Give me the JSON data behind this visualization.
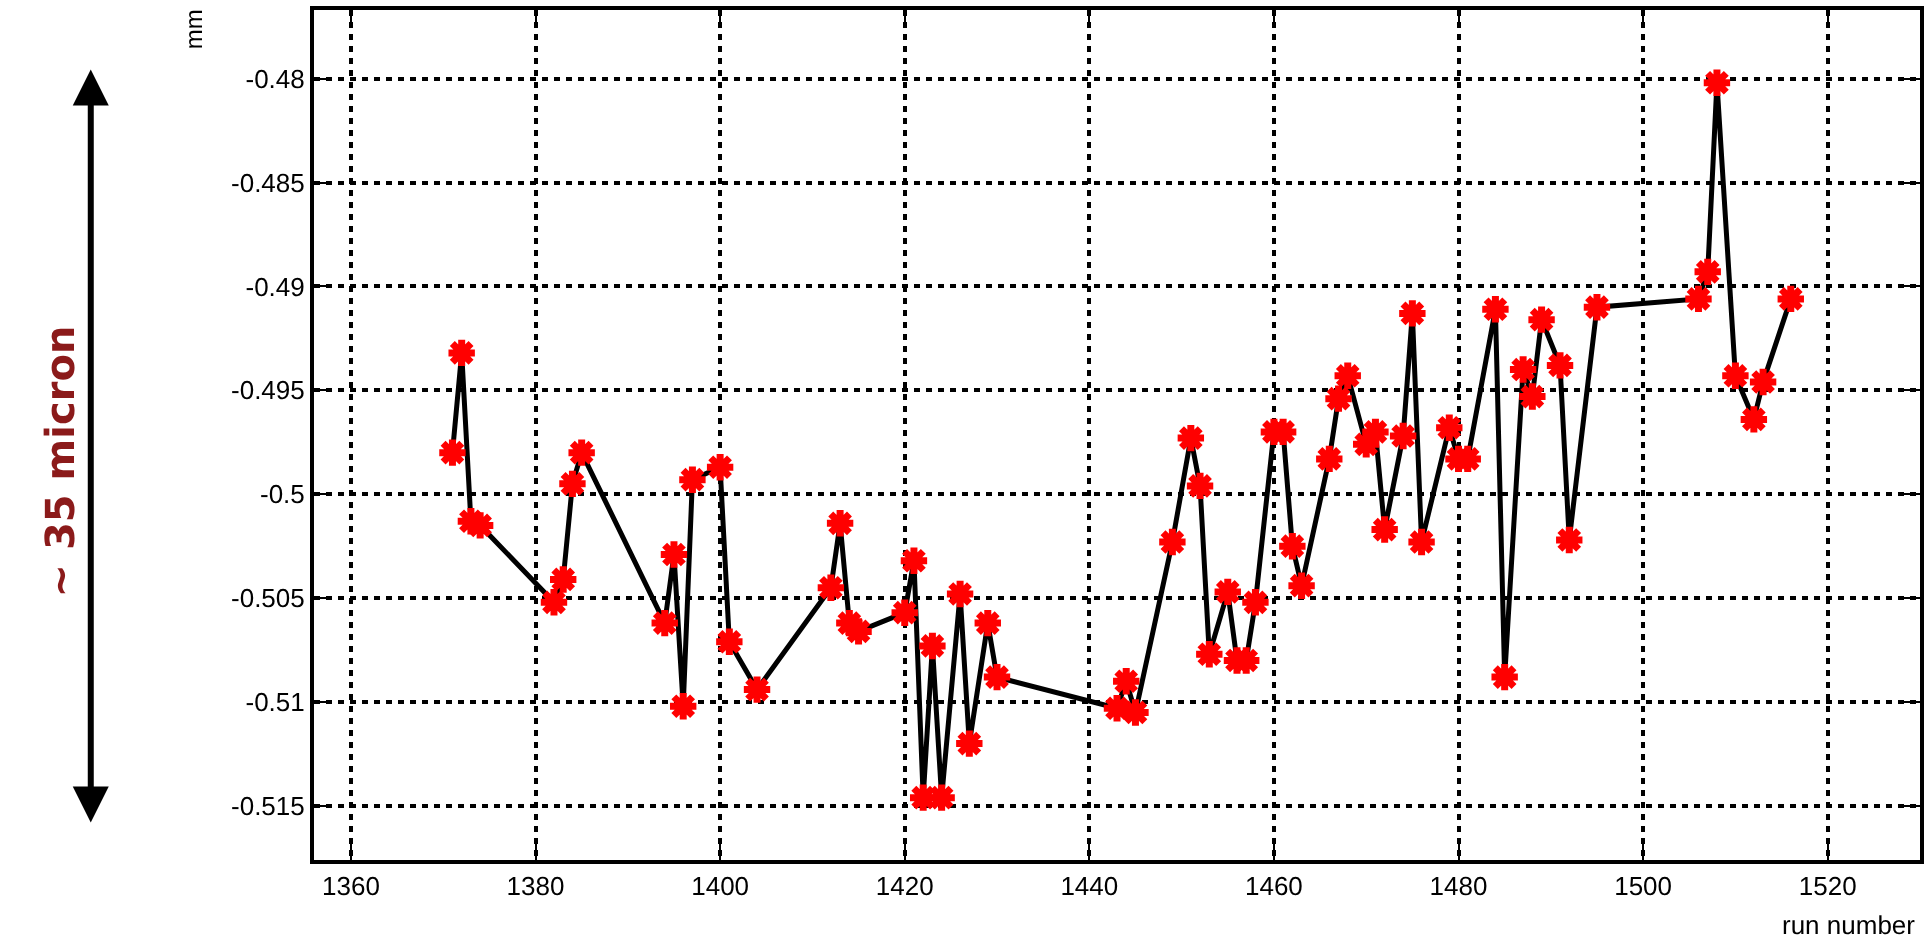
{
  "chart_data": {
    "type": "line",
    "xlabel": "run number",
    "ylabel": "mm",
    "annotations": [
      "~ 35 micron"
    ],
    "x": [
      1371,
      1372,
      1373,
      1374,
      1382,
      1383,
      1384,
      1385,
      1394,
      1395,
      1396,
      1397,
      1400,
      1401,
      1404,
      1412,
      1413,
      1414,
      1415,
      1420,
      1421,
      1422,
      1423,
      1424,
      1426,
      1427,
      1429,
      1430,
      1443,
      1444,
      1445,
      1449,
      1451,
      1452,
      1453,
      1455,
      1456,
      1457,
      1458,
      1460,
      1461,
      1462,
      1463,
      1466,
      1467,
      1468,
      1470,
      1471,
      1472,
      1474,
      1475,
      1476,
      1479,
      1480,
      1481,
      1484,
      1485,
      1487,
      1488,
      1489,
      1491,
      1492,
      1495,
      1506,
      1507,
      1508,
      1510,
      1512,
      1513,
      1516
    ],
    "series": [
      {
        "color": "#ff0000",
        "values": [
          -0.498,
          -0.4932,
          -0.5013,
          -0.5015,
          -0.5052,
          -0.5041,
          -0.4995,
          -0.498,
          -0.5062,
          -0.5029,
          -0.5102,
          -0.4993,
          -0.4987,
          -0.5071,
          -0.5094,
          -0.5045,
          -0.5014,
          -0.5062,
          -0.5066,
          -0.5057,
          -0.5032,
          -0.5146,
          -0.5073,
          -0.5146,
          -0.5048,
          -0.512,
          -0.5062,
          -0.5088,
          -0.5103,
          -0.509,
          -0.5105,
          -0.5023,
          -0.4973,
          -0.4996,
          -0.5077,
          -0.5047,
          -0.508,
          -0.508,
          -0.5052,
          -0.497,
          -0.497,
          -0.5025,
          -0.5044,
          -0.4983,
          -0.4954,
          -0.4943,
          -0.4976,
          -0.497,
          -0.5017,
          -0.4972,
          -0.4913,
          -0.5023,
          -0.4968,
          -0.4983,
          -0.4983,
          -0.4911,
          -0.5088,
          -0.494,
          -0.4953,
          -0.4916,
          -0.4938,
          -0.5022,
          -0.491,
          -0.4906,
          -0.4893,
          -0.4802,
          -0.4943,
          -0.4964,
          -0.4946,
          -0.4906
        ]
      }
    ],
    "xlim": [
      1356,
      1530
    ],
    "ylim": [
      -0.5176,
      -0.4767
    ],
    "xticks": [
      1360,
      1380,
      1400,
      1420,
      1440,
      1460,
      1480,
      1500,
      1520
    ],
    "yticks": [
      -0.48,
      -0.485,
      -0.49,
      -0.495,
      -0.5,
      -0.505,
      -0.51,
      -0.515
    ],
    "grid": true,
    "marker": "cross",
    "line_style": "solid",
    "legend": false
  }
}
